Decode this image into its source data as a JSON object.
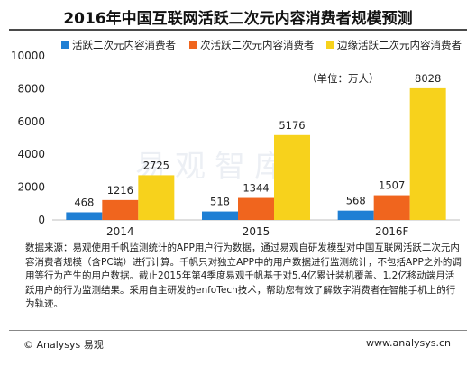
{
  "title": "2016年中国互联网活跃二次元内容消费者规模预测",
  "unit_note": "（单位：万人）",
  "watermark": "易观智库",
  "source_text": "数据来源：易观使用千帆监测统计的APP用户行为数据，通过易观自研发模型对中国互联网活跃二次元内容消费者规模（含PC端）进行计算。千帆只对独立APP中的用户数据进行监测统计，不包括APP之外的调用等行为产生的用户数据。截止2015年第4季度易观千帆基于对5.4亿累计装机覆盖、1.2亿移动端月活跃用户的行为监测结果。采用自主研发的enfoTech技术，帮助您有效了解数字消费者在智能手机上的行为轨迹。",
  "footer_left": "© Analysys 易观",
  "footer_right": "www.analysys.cn",
  "colors": {
    "series1": "#1f7fd4",
    "series2": "#f0651e",
    "series3": "#f7d21c",
    "axis": "#bfbfbf"
  },
  "chart_data": {
    "type": "bar",
    "title": "2016年中国互联网活跃二次元内容消费者规模预测",
    "categories": [
      "2014",
      "2015",
      "2016F"
    ],
    "series": [
      {
        "name": "活跃二次元内容消费者",
        "values": [
          468,
          518,
          568
        ]
      },
      {
        "name": "次活跃二次元内容消费者",
        "values": [
          1216,
          1344,
          1507
        ]
      },
      {
        "name": "边缘活跃二次元内容消费者",
        "values": [
          2725,
          5176,
          8028
        ]
      }
    ],
    "ylim": [
      0,
      10000
    ],
    "yticks": [
      0,
      2000,
      4000,
      6000,
      8000,
      10000
    ],
    "xlabel": "",
    "ylabel": "",
    "grid": false,
    "legend": "top"
  }
}
